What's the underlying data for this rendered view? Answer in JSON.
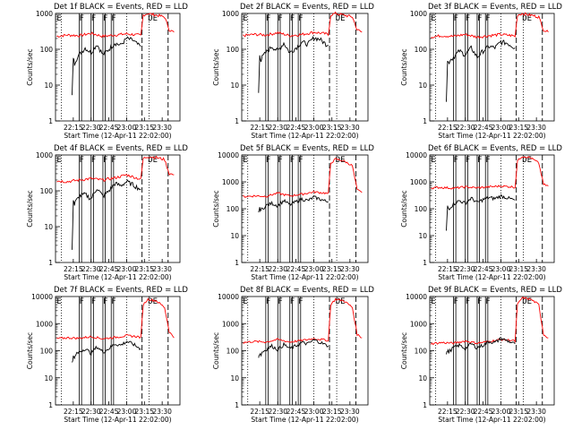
{
  "figure": {
    "x_tick_labels": [
      "22:15",
      "22:30",
      "22:45",
      "23:00",
      "23:15",
      "23:30"
    ],
    "x_tick_values_min": [
      15,
      30,
      45,
      60,
      75,
      90
    ],
    "xlim_min": [
      0,
      105
    ],
    "y_axis_label": "Counts/sec",
    "series_colors": {
      "events": "#000000",
      "lld": "#ff0000"
    }
  },
  "chart_data": [
    {
      "type": "line",
      "title": "Det 1f BLACK = Events, RED = LLD",
      "xlabel": "Start Time (12-Apr-11 22:02:00)",
      "ylabel": "Counts/sec",
      "ymax": 1000,
      "y_ticks": [
        "1",
        "10",
        "100",
        "1000"
      ],
      "yscale": "log",
      "markers": [
        {
          "text": "E",
          "x": 1
        },
        {
          "text": "F",
          "x": 20
        },
        {
          "text": "F",
          "x": 30
        },
        {
          "text": "F",
          "x": 40
        },
        {
          "text": "F",
          "x": 47
        },
        {
          "text": "DE",
          "x": 78
        }
      ],
      "solid_lines": [
        20,
        22,
        30,
        32,
        40,
        42,
        47,
        49
      ],
      "dotted_lines": [
        5,
        60,
        79
      ],
      "dashed_lines": [
        73,
        95
      ],
      "lld": {
        "x": [
          1,
          10,
          20,
          30,
          40,
          50,
          60,
          70,
          72,
          74,
          78,
          85,
          92,
          96,
          100
        ],
        "y": [
          230,
          250,
          240,
          280,
          230,
          250,
          270,
          250,
          240,
          900,
          1000,
          900,
          800,
          350,
          300
        ]
      },
      "events": {
        "x": [
          14,
          15,
          16,
          17,
          20,
          25,
          30,
          35,
          40,
          45,
          50,
          55,
          60,
          65,
          70,
          72
        ],
        "y": [
          5,
          60,
          40,
          50,
          70,
          110,
          80,
          140,
          70,
          100,
          150,
          130,
          200,
          180,
          130,
          120
        ]
      }
    },
    {
      "type": "line",
      "title": "Det 2f BLACK = Events, RED = LLD",
      "xlabel": "Start Time (12-Apr-11 22:02:00)",
      "ylabel": "Counts/sec",
      "ymax": 1000,
      "y_ticks": [
        "1",
        "10",
        "100",
        "1000"
      ],
      "yscale": "log",
      "markers": [
        {
          "text": "E",
          "x": 1
        },
        {
          "text": "F",
          "x": 20
        },
        {
          "text": "F",
          "x": 30
        },
        {
          "text": "F",
          "x": 40
        },
        {
          "text": "F",
          "x": 47
        },
        {
          "text": "DE",
          "x": 78
        }
      ],
      "solid_lines": [
        20,
        22,
        30,
        32,
        40,
        42,
        47,
        49
      ],
      "dotted_lines": [
        5,
        60,
        79
      ],
      "dashed_lines": [
        73,
        95
      ],
      "lld": {
        "x": [
          1,
          10,
          20,
          30,
          40,
          50,
          60,
          70,
          72,
          74,
          78,
          85,
          92,
          96,
          100
        ],
        "y": [
          240,
          260,
          250,
          290,
          240,
          260,
          300,
          270,
          250,
          900,
          1000,
          900,
          800,
          350,
          300
        ]
      },
      "events": {
        "x": [
          14,
          15,
          16,
          17,
          20,
          25,
          30,
          35,
          40,
          45,
          50,
          55,
          60,
          65,
          70,
          72
        ],
        "y": [
          6,
          70,
          50,
          60,
          80,
          120,
          90,
          150,
          80,
          110,
          160,
          140,
          210,
          190,
          140,
          130
        ]
      }
    },
    {
      "type": "line",
      "title": "Det 3f BLACK = Events, RED = LLD",
      "xlabel": "Start Time (12-Apr-11 22:02:00)",
      "ylabel": "Counts/sec",
      "ymax": 1000,
      "y_ticks": [
        "1",
        "10",
        "100",
        "1000"
      ],
      "yscale": "log",
      "markers": [
        {
          "text": "E",
          "x": 1
        },
        {
          "text": "F",
          "x": 20
        },
        {
          "text": "F",
          "x": 30
        },
        {
          "text": "F",
          "x": 40
        },
        {
          "text": "F",
          "x": 47
        },
        {
          "text": "DE",
          "x": 78
        }
      ],
      "solid_lines": [
        20,
        22,
        30,
        32,
        40,
        42,
        47,
        49
      ],
      "dotted_lines": [
        5,
        60,
        79
      ],
      "dashed_lines": [
        73,
        95
      ],
      "lld": {
        "x": [
          1,
          10,
          20,
          30,
          40,
          50,
          60,
          70,
          72,
          74,
          78,
          85,
          92,
          96,
          100
        ],
        "y": [
          220,
          240,
          230,
          260,
          220,
          240,
          260,
          240,
          230,
          900,
          1000,
          900,
          800,
          350,
          300
        ]
      },
      "events": {
        "x": [
          14,
          15,
          16,
          17,
          20,
          25,
          30,
          35,
          40,
          45,
          50,
          55,
          60,
          65,
          70,
          72
        ],
        "y": [
          4,
          50,
          40,
          50,
          60,
          90,
          70,
          110,
          60,
          90,
          120,
          110,
          160,
          150,
          120,
          110
        ]
      }
    },
    {
      "type": "line",
      "title": "Det 4f BLACK = Events, RED = LLD",
      "xlabel": "Start Time (12-Apr-11 22:02:00)",
      "ylabel": "Counts/sec",
      "ymax": 1000,
      "y_ticks": [
        "1",
        "10",
        "100",
        "1000"
      ],
      "yscale": "log",
      "markers": [
        {
          "text": "E",
          "x": 1
        },
        {
          "text": "F",
          "x": 20
        },
        {
          "text": "F",
          "x": 30
        },
        {
          "text": "F",
          "x": 40
        },
        {
          "text": "F",
          "x": 47
        },
        {
          "text": "DE",
          "x": 78
        }
      ],
      "solid_lines": [
        20,
        22,
        30,
        32,
        40,
        42,
        47,
        49
      ],
      "dotted_lines": [
        5,
        60,
        79
      ],
      "dashed_lines": [
        73,
        95
      ],
      "lld": {
        "x": [
          1,
          10,
          20,
          30,
          40,
          50,
          60,
          70,
          72,
          74,
          78,
          85,
          92,
          96,
          100
        ],
        "y": [
          190,
          180,
          200,
          220,
          200,
          230,
          280,
          220,
          210,
          800,
          900,
          850,
          750,
          300,
          280
        ]
      },
      "events": {
        "x": [
          14,
          15,
          16,
          17,
          20,
          25,
          30,
          35,
          40,
          45,
          50,
          55,
          60,
          65,
          70,
          72
        ],
        "y": [
          2,
          60,
          40,
          50,
          70,
          80,
          60,
          120,
          70,
          100,
          160,
          140,
          180,
          150,
          120,
          110
        ]
      }
    },
    {
      "type": "line",
      "title": "Det 5f BLACK = Events, RED = LLD",
      "xlabel": "Start Time (12-Apr-11 22:02:00)",
      "ylabel": "Counts/sec",
      "ymax": 10000,
      "y_ticks": [
        "1",
        "10",
        "100",
        "1000",
        "10000"
      ],
      "yscale": "log",
      "markers": [
        {
          "text": "E",
          "x": 1
        },
        {
          "text": "F",
          "x": 20
        },
        {
          "text": "F",
          "x": 30
        },
        {
          "text": "F",
          "x": 40
        },
        {
          "text": "F",
          "x": 47
        },
        {
          "text": "DE",
          "x": 78
        }
      ],
      "solid_lines": [
        20,
        22,
        30,
        32,
        40,
        42,
        47,
        49
      ],
      "dotted_lines": [
        5,
        60,
        79
      ],
      "dashed_lines": [
        73,
        95
      ],
      "lld": {
        "x": [
          1,
          10,
          20,
          30,
          40,
          50,
          60,
          70,
          72,
          74,
          78,
          85,
          92,
          96,
          100
        ],
        "y": [
          280,
          300,
          290,
          380,
          300,
          350,
          420,
          380,
          360,
          5000,
          7000,
          6000,
          4000,
          500,
          400
        ]
      },
      "events": {
        "x": [
          14,
          15,
          16,
          17,
          20,
          25,
          30,
          35,
          40,
          45,
          50,
          55,
          60,
          65,
          70,
          72
        ],
        "y": [
          80,
          100,
          90,
          100,
          130,
          160,
          130,
          200,
          140,
          180,
          230,
          200,
          270,
          230,
          190,
          180
        ]
      }
    },
    {
      "type": "line",
      "title": "Det 6f BLACK = Events, RED = LLD",
      "xlabel": "Start Time (12-Apr-11 22:02:00)",
      "ylabel": "Counts/sec",
      "ymax": 10000,
      "y_ticks": [
        "1",
        "10",
        "100",
        "1000",
        "10000"
      ],
      "yscale": "log",
      "markers": [
        {
          "text": "E",
          "x": 1
        },
        {
          "text": "F",
          "x": 20
        },
        {
          "text": "F",
          "x": 30
        },
        {
          "text": "F",
          "x": 40
        },
        {
          "text": "F",
          "x": 47
        },
        {
          "text": "DE",
          "x": 78
        }
      ],
      "solid_lines": [
        20,
        22,
        30,
        32,
        40,
        42,
        47,
        49
      ],
      "dotted_lines": [
        5,
        60,
        79
      ],
      "dashed_lines": [
        73,
        95
      ],
      "lld": {
        "x": [
          1,
          10,
          20,
          30,
          40,
          50,
          60,
          70,
          72,
          74,
          78,
          85,
          92,
          96,
          100
        ],
        "y": [
          600,
          620,
          580,
          650,
          600,
          650,
          700,
          650,
          620,
          6000,
          9000,
          8000,
          5000,
          800,
          700
        ]
      },
      "events": {
        "x": [
          14,
          15,
          16,
          17,
          20,
          25,
          30,
          35,
          40,
          45,
          50,
          55,
          60,
          65,
          70,
          72
        ],
        "y": [
          15,
          120,
          100,
          110,
          150,
          200,
          160,
          250,
          170,
          220,
          260,
          240,
          300,
          260,
          220,
          210
        ]
      }
    },
    {
      "type": "line",
      "title": "Det 7f BLACK = Events, RED = LLD",
      "xlabel": "Start Time (12-Apr-11 22:02:00)",
      "ylabel": "Counts/sec",
      "ymax": 10000,
      "y_ticks": [
        "1",
        "10",
        "100",
        "1000",
        "10000"
      ],
      "yscale": "log",
      "markers": [
        {
          "text": "E",
          "x": 1
        },
        {
          "text": "F",
          "x": 20
        },
        {
          "text": "F",
          "x": 30
        },
        {
          "text": "F",
          "x": 40
        },
        {
          "text": "F",
          "x": 47
        },
        {
          "text": "DE",
          "x": 78
        }
      ],
      "solid_lines": [
        20,
        22,
        30,
        32,
        40,
        42,
        47,
        49
      ],
      "dotted_lines": [
        5,
        60,
        79
      ],
      "dashed_lines": [
        73,
        95
      ],
      "lld": {
        "x": [
          1,
          10,
          20,
          30,
          40,
          50,
          60,
          70,
          72,
          74,
          78,
          85,
          92,
          96,
          100
        ],
        "y": [
          280,
          300,
          290,
          330,
          280,
          310,
          360,
          330,
          300,
          5000,
          8000,
          7000,
          4000,
          500,
          300
        ]
      },
      "events": {
        "x": [
          14,
          15,
          16,
          17,
          20,
          25,
          30,
          35,
          40,
          45,
          50,
          55,
          60,
          65,
          70,
          72
        ],
        "y": [
          40,
          60,
          50,
          70,
          90,
          120,
          80,
          140,
          90,
          120,
          180,
          160,
          220,
          180,
          130,
          120
        ]
      }
    },
    {
      "type": "line",
      "title": "Det 8f BLACK = Events, RED = LLD",
      "xlabel": "Start Time (12-Apr-11 22:02:00)",
      "ylabel": "Counts/sec",
      "ymax": 10000,
      "y_ticks": [
        "1",
        "10",
        "100",
        "1000",
        "10000"
      ],
      "yscale": "log",
      "markers": [
        {
          "text": "E",
          "x": 1
        },
        {
          "text": "F",
          "x": 20
        },
        {
          "text": "F",
          "x": 30
        },
        {
          "text": "F",
          "x": 40
        },
        {
          "text": "F",
          "x": 47
        },
        {
          "text": "DE",
          "x": 78
        }
      ],
      "solid_lines": [
        20,
        22,
        30,
        32,
        40,
        42,
        47,
        49
      ],
      "dotted_lines": [
        5,
        60,
        79
      ],
      "dashed_lines": [
        73,
        95
      ],
      "lld": {
        "x": [
          1,
          10,
          20,
          30,
          40,
          50,
          60,
          70,
          72,
          74,
          78,
          85,
          92,
          96,
          100
        ],
        "y": [
          200,
          220,
          210,
          260,
          210,
          240,
          280,
          250,
          230,
          5000,
          8000,
          7000,
          4000,
          400,
          300
        ]
      },
      "events": {
        "x": [
          14,
          15,
          16,
          17,
          20,
          25,
          30,
          35,
          40,
          45,
          50,
          55,
          60,
          65,
          70,
          72
        ],
        "y": [
          60,
          80,
          70,
          90,
          110,
          150,
          110,
          170,
          120,
          150,
          200,
          180,
          250,
          210,
          160,
          150
        ]
      }
    },
    {
      "type": "line",
      "title": "Det 9f BLACK = Events, RED = LLD",
      "xlabel": "Start Time (12-Apr-11 22:02:00)",
      "ylabel": "Counts/sec",
      "ymax": 10000,
      "y_ticks": [
        "1",
        "10",
        "100",
        "1000",
        "10000"
      ],
      "yscale": "log",
      "markers": [
        {
          "text": "E",
          "x": 1
        },
        {
          "text": "F",
          "x": 20
        },
        {
          "text": "F",
          "x": 30
        },
        {
          "text": "F",
          "x": 40
        },
        {
          "text": "F",
          "x": 47
        },
        {
          "text": "DE",
          "x": 78
        }
      ],
      "solid_lines": [
        20,
        22,
        30,
        32,
        40,
        42,
        47,
        49
      ],
      "dotted_lines": [
        5,
        60,
        79
      ],
      "dashed_lines": [
        73,
        95
      ],
      "lld": {
        "x": [
          1,
          10,
          20,
          30,
          40,
          50,
          60,
          70,
          72,
          74,
          78,
          85,
          92,
          96,
          100
        ],
        "y": [
          180,
          200,
          190,
          230,
          190,
          220,
          260,
          240,
          220,
          5000,
          9000,
          8000,
          5000,
          400,
          300
        ]
      },
      "events": {
        "x": [
          14,
          15,
          16,
          17,
          20,
          25,
          30,
          35,
          40,
          45,
          50,
          55,
          60,
          65,
          70,
          72
        ],
        "y": [
          80,
          100,
          90,
          100,
          130,
          160,
          120,
          180,
          130,
          160,
          220,
          200,
          280,
          240,
          190,
          180
        ]
      }
    }
  ]
}
